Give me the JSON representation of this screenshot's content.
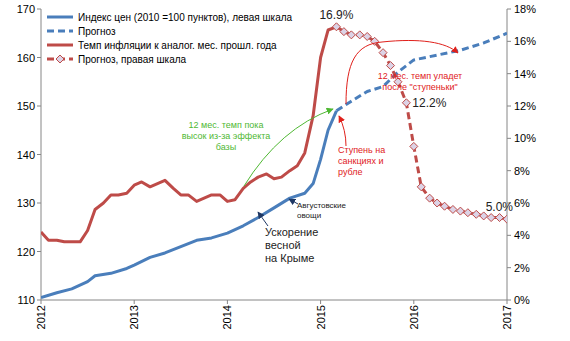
{
  "chart_data": {
    "type": "line",
    "xlim": [
      2012,
      2017
    ],
    "xticks": [
      2012,
      2013,
      2014,
      2015,
      2016,
      2017
    ],
    "ylim": [
      110,
      170
    ],
    "yticks": [
      110,
      120,
      130,
      140,
      150,
      160,
      170
    ],
    "y2lim": [
      0,
      18
    ],
    "y2ticks": [
      {
        "value": 0,
        "label": "0%"
      },
      {
        "value": 2,
        "label": "2%"
      },
      {
        "value": 4,
        "label": "4%"
      },
      {
        "value": 6,
        "label": "6%"
      },
      {
        "value": 8,
        "label": "8%"
      },
      {
        "value": 10,
        "label": "10%"
      },
      {
        "value": 12,
        "label": "12%"
      },
      {
        "value": 14,
        "label": "14%"
      },
      {
        "value": 16,
        "label": "16%"
      },
      {
        "value": 18,
        "label": "18%"
      }
    ],
    "grid": false,
    "legend": "top-left",
    "series": [
      {
        "name": "Индекс цен (2010 =100 пунктов), левая шкала",
        "color": "#4a7ebb",
        "line_style": "solid",
        "x": [
          2012.0,
          2012.17,
          2012.33,
          2012.5,
          2012.58,
          2012.75,
          2012.92,
          2013.0,
          2013.17,
          2013.33,
          2013.5,
          2013.67,
          2013.83,
          2014.0,
          2014.17,
          2014.33,
          2014.5,
          2014.67,
          2014.83,
          2014.92,
          2015.0,
          2015.08,
          2015.17
        ],
        "values": [
          110.5,
          111.5,
          112.3,
          113.8,
          115.0,
          115.5,
          116.5,
          117.2,
          118.8,
          119.7,
          121.0,
          122.3,
          122.8,
          123.8,
          125.3,
          127.0,
          129.0,
          131.0,
          132.0,
          134.0,
          139.0,
          145.0,
          149.0
        ]
      },
      {
        "name": "Прогноз",
        "color": "#4a7ebb",
        "line_style": "dashed",
        "x": [
          2015.17,
          2015.33,
          2015.5,
          2015.67,
          2015.83,
          2016.0,
          2016.25,
          2016.5,
          2016.75,
          2017.0
        ],
        "values": [
          149.0,
          151.0,
          153.0,
          154.0,
          157.0,
          159.5,
          160.5,
          161.5,
          163.0,
          165.0
        ]
      },
      {
        "name": "Темп инфляции к аналог. мес. прошл. года",
        "color": "#be4b48",
        "line_style": "solid",
        "axis": "y2",
        "x": [
          2012.0,
          2012.08,
          2012.17,
          2012.25,
          2012.33,
          2012.42,
          2012.5,
          2012.58,
          2012.67,
          2012.75,
          2012.83,
          2012.92,
          2013.0,
          2013.08,
          2013.17,
          2013.25,
          2013.33,
          2013.42,
          2013.5,
          2013.58,
          2013.67,
          2013.75,
          2013.83,
          2013.92,
          2014.0,
          2014.08,
          2014.17,
          2014.25,
          2014.33,
          2014.42,
          2014.5,
          2014.58,
          2014.67,
          2014.75,
          2014.83,
          2014.92,
          2015.0,
          2015.08,
          2015.17
        ],
        "values": [
          4.2,
          3.7,
          3.7,
          3.6,
          3.6,
          3.6,
          4.3,
          5.6,
          6.0,
          6.5,
          6.5,
          6.6,
          7.1,
          7.3,
          7.0,
          7.2,
          7.4,
          6.9,
          6.5,
          6.5,
          6.1,
          6.3,
          6.5,
          6.5,
          6.1,
          6.2,
          6.9,
          7.3,
          7.6,
          7.8,
          7.5,
          7.6,
          8.0,
          8.3,
          9.1,
          11.4,
          15.0,
          16.7,
          16.9
        ]
      },
      {
        "name": "Прогноз, правая шкала",
        "color": "#be4b48",
        "line_style": "dashed",
        "marker": "diamond",
        "axis": "y2",
        "x": [
          2015.17,
          2015.25,
          2015.33,
          2015.42,
          2015.5,
          2015.58,
          2015.67,
          2015.75,
          2015.83,
          2015.92,
          2016.0,
          2016.08,
          2016.17,
          2016.25,
          2016.33,
          2016.42,
          2016.5,
          2016.58,
          2016.67,
          2016.75,
          2016.83,
          2016.92,
          2017.0
        ],
        "values": [
          16.9,
          16.6,
          16.4,
          16.4,
          16.3,
          16.0,
          15.3,
          14.5,
          13.5,
          12.2,
          9.5,
          7.0,
          6.3,
          6.0,
          5.8,
          5.6,
          5.5,
          5.4,
          5.3,
          5.2,
          5.1,
          5.1,
          5.0
        ],
        "value_labels": [
          "16.9%",
          null,
          null,
          null,
          null,
          null,
          null,
          null,
          null,
          "12.2%",
          null,
          null,
          null,
          null,
          null,
          null,
          null,
          null,
          null,
          null,
          null,
          null,
          "5.0%"
        ]
      }
    ],
    "annotations": [
      {
        "text": "12 мес. темп уладет\nпосле \"ступеньки\"",
        "color": "#e0201b"
      },
      {
        "text": "12 мес. темп пока\nвысок из-за эффекта\nбазы",
        "color": "#4fb833"
      },
      {
        "text": "Ступень на\nсанкциях и\nрубле",
        "color": "#e0201b"
      },
      {
        "text": "Августовские\nовощи",
        "color": "#222222"
      },
      {
        "text": "Ускорение\nвесной\nна Крыме",
        "color": "#222222"
      }
    ]
  }
}
